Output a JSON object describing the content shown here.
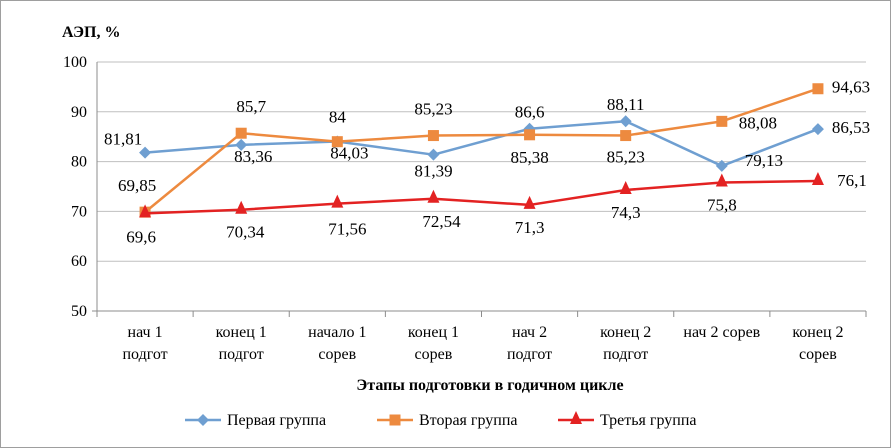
{
  "chart_data": {
    "type": "line",
    "title": "",
    "ylabel": "АЭП, %",
    "xlabel": "Этапы подготовки в годичном цикле",
    "ylim": [
      50,
      100
    ],
    "yticks": [
      50,
      60,
      70,
      80,
      90,
      100
    ],
    "grid": true,
    "legend_position": "bottom",
    "categories": [
      [
        "нач 1",
        "подгот"
      ],
      [
        "конец 1",
        "подгот"
      ],
      [
        "начало 1",
        "сорев"
      ],
      [
        "конец 1",
        "сорев"
      ],
      [
        "нач 2",
        "подгот"
      ],
      [
        "конец 2",
        "подгот"
      ],
      [
        "нач 2 сорев"
      ],
      [
        "конец 2",
        "сорев"
      ]
    ],
    "series": [
      {
        "name": "Первая группа",
        "color": "#6f9fd1",
        "marker": "diamond",
        "values": [
          81.81,
          83.36,
          84.03,
          81.39,
          86.6,
          88.11,
          79.13,
          86.53
        ],
        "labels": [
          "81,81",
          "83,36",
          "84,03",
          "81,39",
          "86,6",
          "88,11",
          "79,13",
          "86,53"
        ]
      },
      {
        "name": "Вторая группа",
        "color": "#ed8a3f",
        "marker": "square",
        "values": [
          69.85,
          85.7,
          84,
          85.23,
          85.38,
          85.23,
          88.08,
          94.63
        ],
        "labels": [
          "69,85",
          "85,7",
          "84",
          "85,23",
          "85,38",
          "85,23",
          "88,08",
          "94,63"
        ]
      },
      {
        "name": "Третья группа",
        "color": "#e32222",
        "marker": "triangle",
        "values": [
          69.6,
          70.34,
          71.56,
          72.54,
          71.3,
          74.3,
          75.8,
          76.1
        ],
        "labels": [
          "69,6",
          "70,34",
          "71,56",
          "72,54",
          "71,3",
          "74,3",
          "75,8",
          "76,1"
        ]
      }
    ]
  }
}
